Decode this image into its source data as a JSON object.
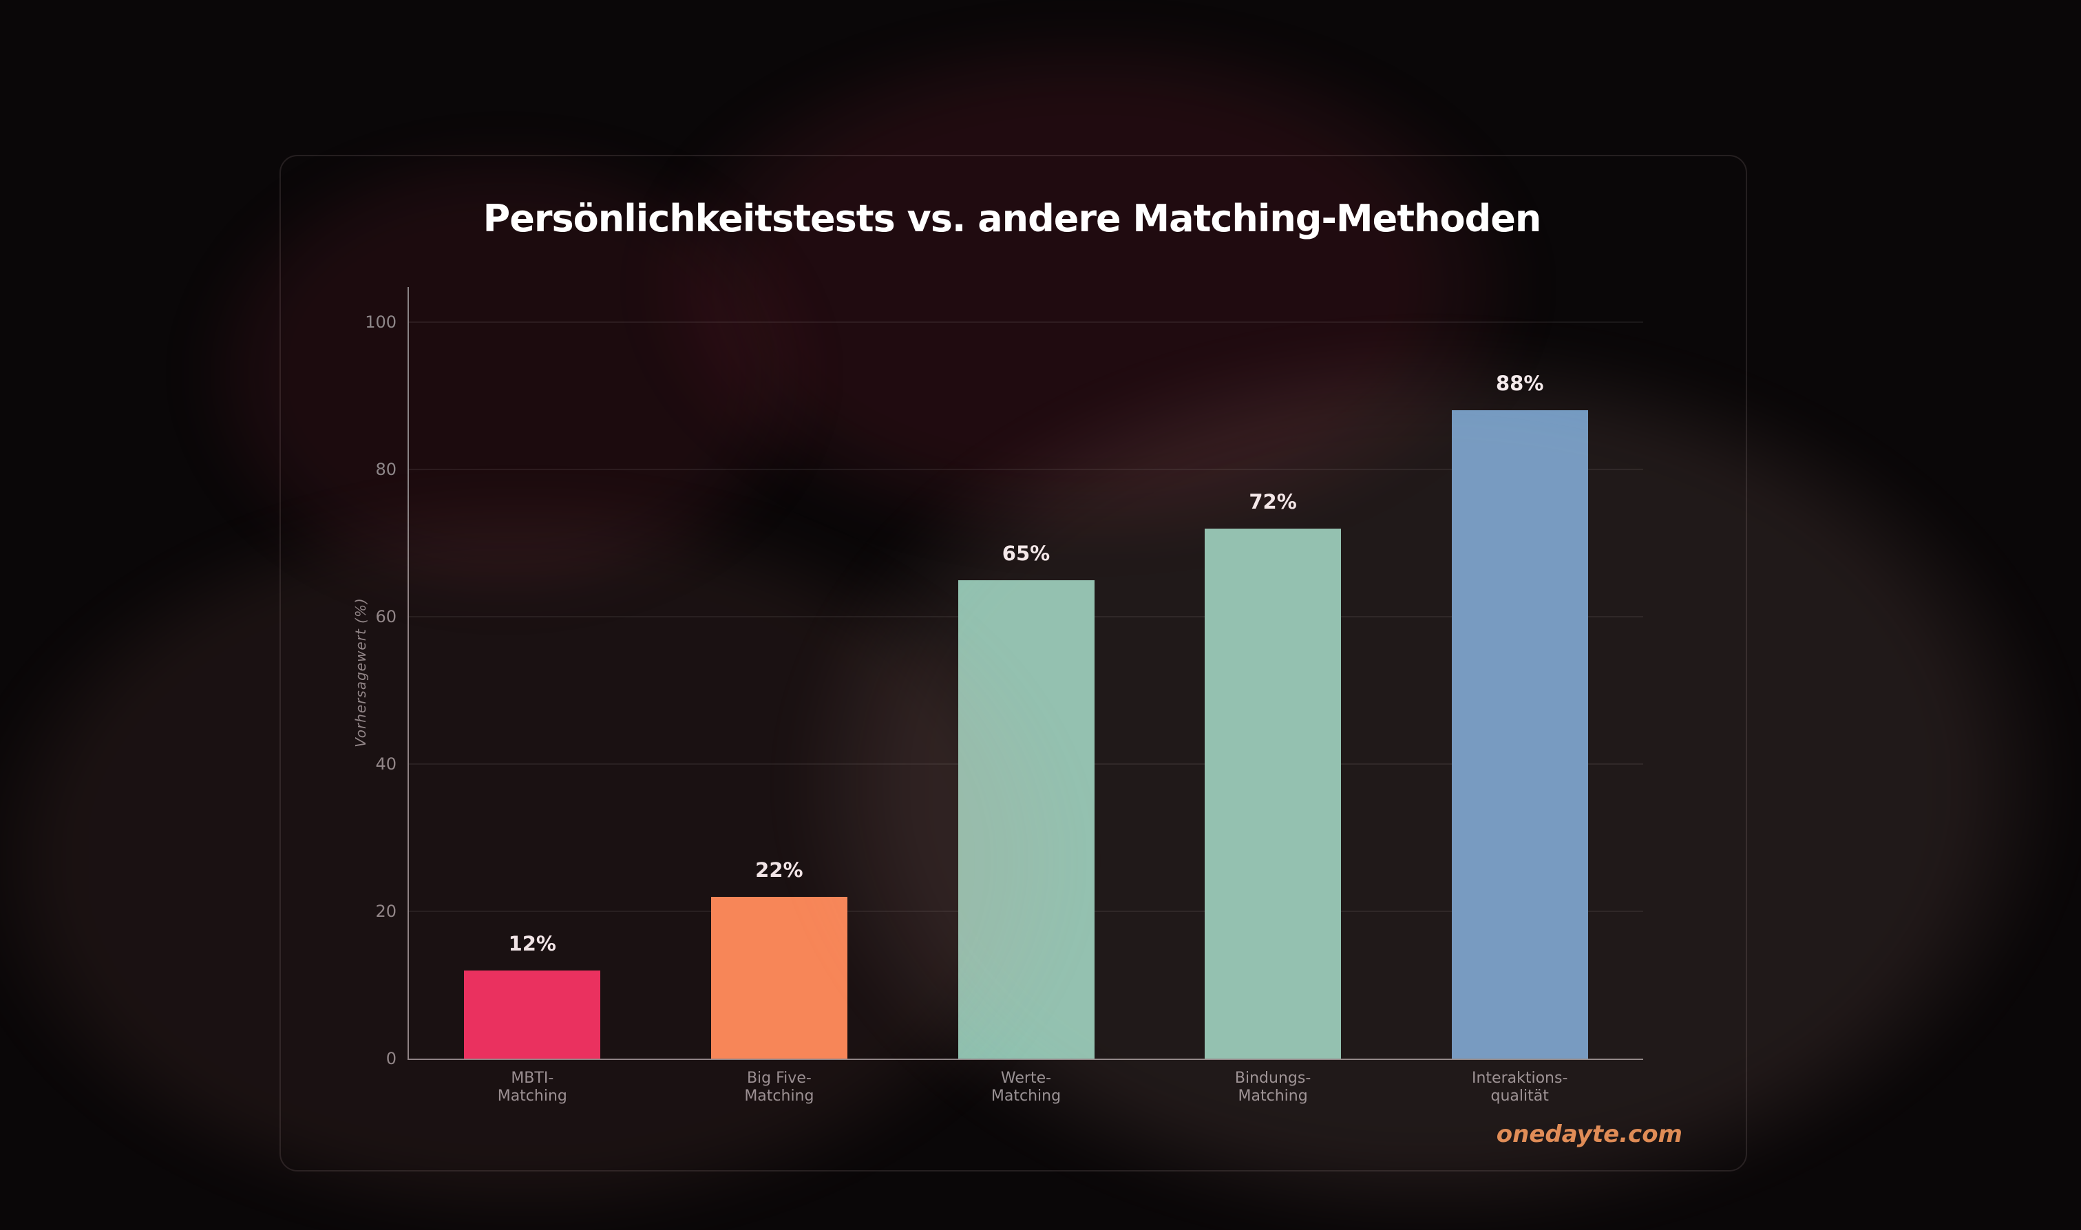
{
  "page": {
    "background": "#0a0708"
  },
  "watermark": {
    "text": "onedayte.com",
    "color": "#e0894f"
  },
  "chart_data": {
    "type": "bar",
    "title": "Persönlichkeitstests vs. andere Matching-Methoden",
    "xlabel": "",
    "ylabel": "Vorhersagewert (%)",
    "ylim": [
      0,
      105
    ],
    "yticks": [
      0,
      20,
      40,
      60,
      80,
      100
    ],
    "grid": true,
    "legend": false,
    "categories": [
      "MBTI-\nMatching",
      "Big Five-\nMatching",
      "Werte-\nMatching",
      "Bindungs-\nMatching",
      "Interaktions-\nqualität"
    ],
    "values": [
      12,
      22,
      65,
      72,
      88
    ],
    "value_labels": [
      "12%",
      "22%",
      "65%",
      "72%",
      "88%"
    ],
    "bar_colors": [
      "#ee2a5c",
      "#fc8755",
      "#8bc3b1",
      "#8bc3b1",
      "#6c99c4"
    ]
  },
  "theme": {
    "background": "#0a0708",
    "card_border": "rgba(235,205,205,0.12)",
    "grid_color": "rgba(255,255,255,0.07)",
    "axis_color": "#8a8486",
    "tick_color": "#8e8789",
    "category_color": "#979194",
    "title_color": "#ffffff",
    "value_label_color": "#f6eef0"
  }
}
